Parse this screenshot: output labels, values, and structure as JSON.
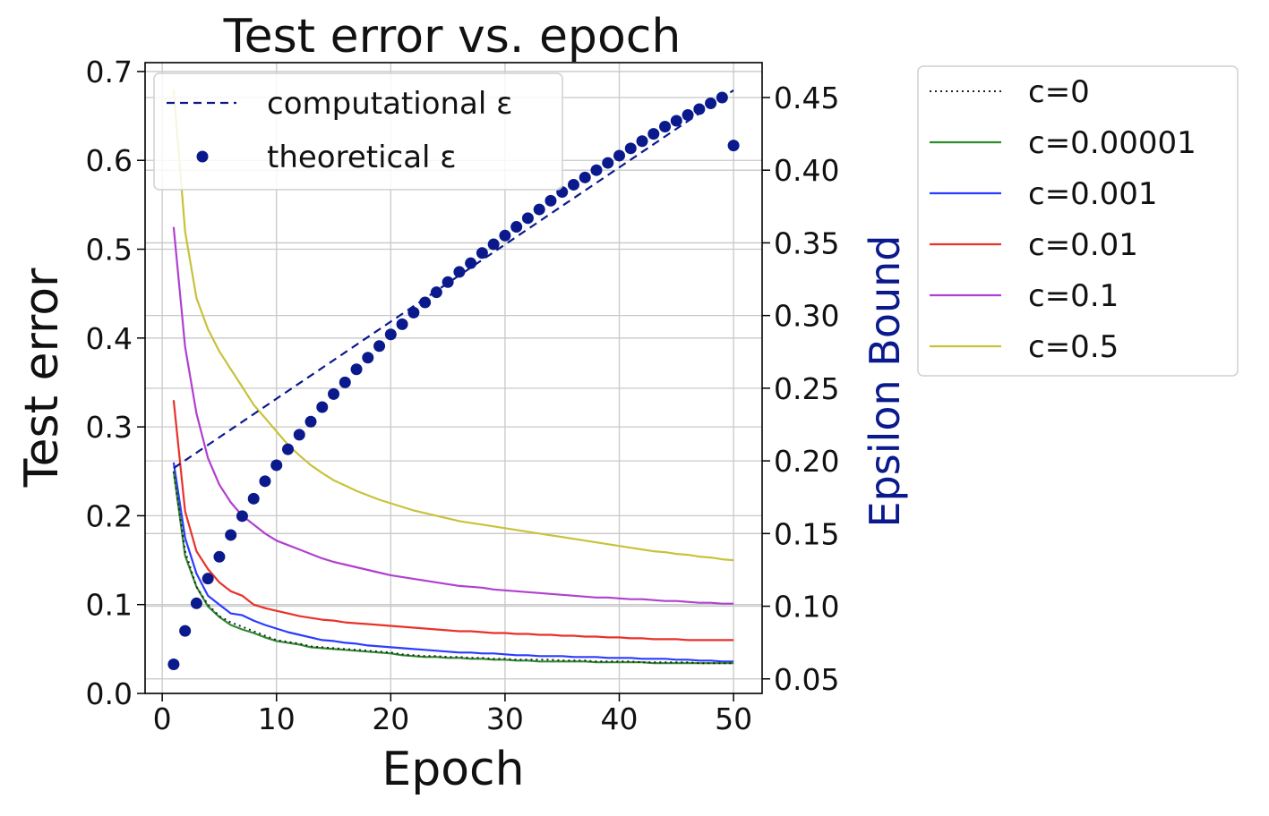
{
  "chart_data": {
    "type": "line",
    "title": "Test error vs. epoch",
    "xlabel": "Epoch",
    "ylabel": "Test error",
    "y2label": "Epsilon Bound",
    "xlim": [
      -1.5,
      52.5
    ],
    "ylim": [
      0,
      0.71
    ],
    "y2lim": [
      0.04,
      0.474
    ],
    "xticks": [
      0,
      10,
      20,
      30,
      40,
      50
    ],
    "yticks": [
      0.0,
      0.1,
      0.2,
      0.3,
      0.4,
      0.5,
      0.6,
      0.7
    ],
    "y2ticks": [
      0.05,
      0.1,
      0.15,
      0.2,
      0.25,
      0.3,
      0.35,
      0.4,
      0.45
    ],
    "grid": true,
    "legend_placement_left": "top-left",
    "legend_placement_right": "outside-right",
    "colors": {
      "c0": "#222222",
      "c00001": "#2e8b2e",
      "c0001": "#2b3bff",
      "c001": "#e8322a",
      "c01": "#b040d0",
      "c05": "#c8c23a",
      "epsilon": "#0a1a8c"
    },
    "series": [
      {
        "name": "c=0",
        "axis": "left",
        "style": "dotted",
        "color_key": "c0",
        "values": [
          0.25,
          0.16,
          0.12,
          0.1,
          0.087,
          0.08,
          0.075,
          0.07,
          0.065,
          0.06,
          0.058,
          0.056,
          0.053,
          0.052,
          0.051,
          0.05,
          0.049,
          0.048,
          0.047,
          0.046,
          0.044,
          0.043,
          0.042,
          0.042,
          0.041,
          0.041,
          0.04,
          0.04,
          0.039,
          0.039,
          0.038,
          0.038,
          0.038,
          0.038,
          0.037,
          0.037,
          0.037,
          0.036,
          0.036,
          0.036,
          0.036,
          0.035,
          0.035,
          0.035,
          0.035,
          0.035,
          0.034,
          0.034,
          0.034,
          0.034
        ]
      },
      {
        "name": "c=0.00001",
        "axis": "left",
        "style": "solid",
        "color_key": "c00001",
        "values": [
          0.25,
          0.155,
          0.12,
          0.098,
          0.086,
          0.077,
          0.072,
          0.068,
          0.063,
          0.059,
          0.057,
          0.055,
          0.052,
          0.051,
          0.05,
          0.049,
          0.048,
          0.047,
          0.046,
          0.045,
          0.043,
          0.042,
          0.041,
          0.041,
          0.04,
          0.04,
          0.039,
          0.039,
          0.038,
          0.038,
          0.037,
          0.037,
          0.036,
          0.036,
          0.036,
          0.036,
          0.036,
          0.035,
          0.035,
          0.035,
          0.035,
          0.035,
          0.034,
          0.034,
          0.034,
          0.034,
          0.034,
          0.034,
          0.034,
          0.034
        ]
      },
      {
        "name": "c=0.001",
        "axis": "left",
        "style": "solid",
        "color_key": "c0001",
        "values": [
          0.26,
          0.175,
          0.135,
          0.11,
          0.1,
          0.09,
          0.088,
          0.082,
          0.077,
          0.073,
          0.069,
          0.066,
          0.063,
          0.06,
          0.059,
          0.057,
          0.056,
          0.054,
          0.053,
          0.052,
          0.051,
          0.05,
          0.049,
          0.048,
          0.047,
          0.046,
          0.046,
          0.045,
          0.045,
          0.044,
          0.043,
          0.043,
          0.042,
          0.042,
          0.042,
          0.041,
          0.041,
          0.041,
          0.04,
          0.04,
          0.04,
          0.039,
          0.039,
          0.039,
          0.038,
          0.038,
          0.037,
          0.037,
          0.036,
          0.036
        ]
      },
      {
        "name": "c=0.01",
        "axis": "left",
        "style": "solid",
        "color_key": "c001",
        "values": [
          0.33,
          0.205,
          0.16,
          0.14,
          0.125,
          0.115,
          0.11,
          0.1,
          0.096,
          0.093,
          0.09,
          0.087,
          0.085,
          0.083,
          0.082,
          0.08,
          0.079,
          0.078,
          0.077,
          0.076,
          0.075,
          0.074,
          0.073,
          0.072,
          0.071,
          0.07,
          0.07,
          0.069,
          0.068,
          0.068,
          0.067,
          0.067,
          0.066,
          0.066,
          0.065,
          0.065,
          0.064,
          0.064,
          0.063,
          0.063,
          0.062,
          0.062,
          0.061,
          0.061,
          0.061,
          0.06,
          0.06,
          0.06,
          0.06,
          0.06
        ]
      },
      {
        "name": "c=0.1",
        "axis": "left",
        "style": "solid",
        "color_key": "c01",
        "values": [
          0.525,
          0.39,
          0.315,
          0.265,
          0.235,
          0.215,
          0.2,
          0.19,
          0.18,
          0.172,
          0.167,
          0.162,
          0.157,
          0.152,
          0.148,
          0.145,
          0.142,
          0.139,
          0.136,
          0.133,
          0.131,
          0.129,
          0.127,
          0.125,
          0.123,
          0.121,
          0.12,
          0.119,
          0.117,
          0.116,
          0.115,
          0.114,
          0.113,
          0.112,
          0.111,
          0.11,
          0.109,
          0.108,
          0.108,
          0.107,
          0.106,
          0.106,
          0.105,
          0.104,
          0.104,
          0.103,
          0.102,
          0.102,
          0.101,
          0.101
        ]
      },
      {
        "name": "c=0.5",
        "axis": "left",
        "style": "solid",
        "color_key": "c05",
        "values": [
          0.68,
          0.52,
          0.445,
          0.41,
          0.385,
          0.365,
          0.345,
          0.325,
          0.31,
          0.295,
          0.28,
          0.268,
          0.257,
          0.248,
          0.24,
          0.234,
          0.228,
          0.223,
          0.218,
          0.214,
          0.21,
          0.206,
          0.203,
          0.2,
          0.197,
          0.194,
          0.192,
          0.19,
          0.188,
          0.186,
          0.184,
          0.182,
          0.18,
          0.178,
          0.176,
          0.174,
          0.172,
          0.17,
          0.168,
          0.166,
          0.164,
          0.162,
          0.16,
          0.159,
          0.157,
          0.156,
          0.154,
          0.153,
          0.151,
          0.15
        ]
      },
      {
        "name": "computational ε",
        "axis": "right",
        "style": "dashed",
        "color_key": "epsilon",
        "x": [
          1,
          50
        ],
        "values": [
          0.195,
          0.455
        ]
      },
      {
        "name": "theoretical ε",
        "axis": "right",
        "style": "markers",
        "color_key": "epsilon",
        "values": [
          0.06,
          0.083,
          0.102,
          0.119,
          0.134,
          0.149,
          0.162,
          0.174,
          0.186,
          0.197,
          0.208,
          0.218,
          0.227,
          0.237,
          0.246,
          0.254,
          0.263,
          0.271,
          0.279,
          0.287,
          0.294,
          0.302,
          0.309,
          0.316,
          0.323,
          0.33,
          0.336,
          0.343,
          0.349,
          0.355,
          0.361,
          0.367,
          0.373,
          0.379,
          0.385,
          0.39,
          0.395,
          0.4,
          0.405,
          0.41,
          0.415,
          0.42,
          0.425,
          0.43,
          0.434,
          0.438,
          0.442,
          0.446,
          0.45,
          0.417
        ]
      }
    ],
    "legend_left": [
      "computational ε",
      "theoretical ε"
    ],
    "legend_right": [
      "c=0",
      "c=0.00001",
      "c=0.001",
      "c=0.01",
      "c=0.1",
      "c=0.5"
    ]
  }
}
